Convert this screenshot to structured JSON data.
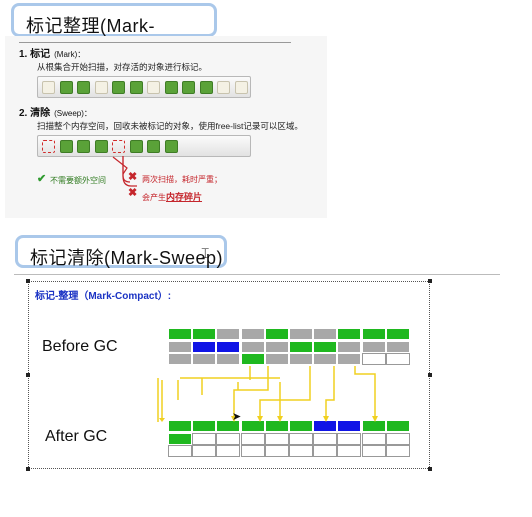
{
  "titles": {
    "mark_compact": "标记整理(Mark-Compact)",
    "mark_sweep": "标记清除(Mark-Sweep)"
  },
  "section1": {
    "step1_head": "1. 标记",
    "step1_sub": "(Mark)：",
    "step1_text": "从根集合开始扫描，对存活的对象进行标记。",
    "step2_head": "2. 清除",
    "step2_sub": "(Sweep)：",
    "step2_text": "扫描整个内存空间，回收未被标记的对象，使用free-list记录可以区域。",
    "note_ok": "不需要额外空间",
    "note_bad1": "两次扫描，耗时严重；",
    "note_bad2_prefix": "会产生",
    "note_bad2_emph": "内存碎片",
    "colors": {
      "green": "#5aa238",
      "red": "#c5262c"
    }
  },
  "section2": {
    "title": "标记-整理（Mark-Compact）:",
    "before_label": "Before GC",
    "after_label": "After GC",
    "before_grid": [
      [
        "green",
        "green",
        "gray",
        "gray",
        "green",
        "gray",
        "gray",
        "green",
        "green",
        "green"
      ],
      [
        "gray",
        "blue",
        "blue",
        "gray",
        "gray",
        "green",
        "green",
        "gray",
        "gray",
        "gray"
      ],
      [
        "gray",
        "gray",
        "gray",
        "green",
        "gray",
        "gray",
        "gray",
        "gray",
        "white",
        "white"
      ]
    ],
    "after_grid": [
      [
        "green",
        "green",
        "green",
        "green",
        "green",
        "green",
        "blue",
        "blue",
        "green",
        "green"
      ],
      [
        "green",
        "white",
        "white",
        "white",
        "white",
        "white",
        "white",
        "white",
        "white",
        "white"
      ],
      [
        "white",
        "white",
        "white",
        "white",
        "white",
        "white",
        "white",
        "white",
        "white",
        "white"
      ]
    ],
    "colors": {
      "green": "#1fb81f",
      "gray": "#a8a8a8",
      "blue": "#1014e6",
      "arrow": "#f0d020"
    }
  }
}
